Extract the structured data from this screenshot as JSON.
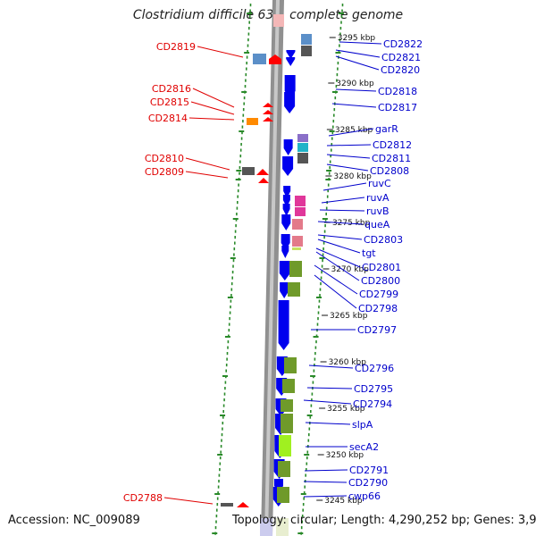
{
  "title": "Clostridium difficile 630, complete genome",
  "accession": "Accession: NC_009089",
  "topology": "Topology: circular; Length: 4,290,252 bp; Genes: 3,926",
  "colors": {
    "left_label": "#e00000",
    "right_label": "#0000cc",
    "backbone": "#888888",
    "tick": "#2a8a2a",
    "forward": "#0000ee",
    "reverse": "#ff0000"
  },
  "kbp_markers": [
    "3295 kbp",
    "3290 kbp",
    "3285 kbp",
    "3280 kbp",
    "3275 kbp",
    "3270 kbp",
    "3265 kbp",
    "3260 kbp",
    "3255 kbp",
    "3250 kbp",
    "3245 kbp"
  ],
  "left_genes": [
    "CD2819",
    "CD2816",
    "CD2815",
    "CD2814",
    "CD2810",
    "CD2809",
    "CD2788"
  ],
  "right_genes": [
    "CD2822",
    "CD2821",
    "CD2820",
    "CD2818",
    "CD2817",
    "garR",
    "CD2812",
    "CD2811",
    "CD2808",
    "ruvC",
    "ruvA",
    "ruvB",
    "queA",
    "CD2803",
    "tgt",
    "CD2801",
    "CD2800",
    "CD2799",
    "CD2798",
    "CD2797",
    "CD2796",
    "CD2795",
    "CD2794",
    "slpA",
    "secA2",
    "CD2791",
    "CD2790",
    "cwp66"
  ]
}
